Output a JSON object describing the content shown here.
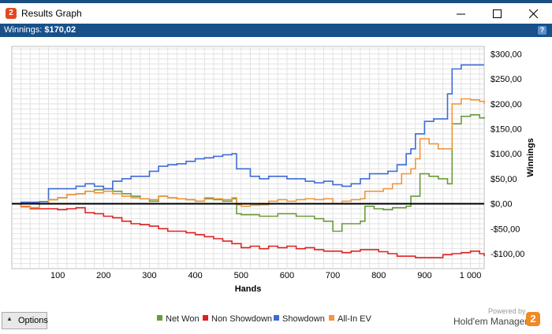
{
  "window": {
    "title": "Results Graph",
    "app_icon_glyph": "2",
    "controls": {
      "minimize": "minimize-icon",
      "maximize": "maximize-icon",
      "close": "close-icon"
    }
  },
  "status": {
    "label": "Winnings:",
    "value": "$170,02",
    "help_glyph": "?"
  },
  "chart_data": {
    "type": "line",
    "xlabel": "Hands",
    "ylabel": "Winnings",
    "xlim": [
      0,
      1030
    ],
    "ylim": [
      -130,
      315
    ],
    "x_ticks": [
      100,
      200,
      300,
      400,
      500,
      600,
      700,
      800,
      900,
      1000
    ],
    "x_tick_labels": [
      "100",
      "200",
      "300",
      "400",
      "500",
      "600",
      "700",
      "800",
      "900",
      "1 000"
    ],
    "y_ticks": [
      -100,
      -50,
      0,
      50,
      100,
      150,
      200,
      250,
      300
    ],
    "y_tick_labels": [
      "-$100,00",
      "-$50,00",
      "$0,00",
      "$50,00",
      "$100,00",
      "$150,00",
      "$200,00",
      "$250,00",
      "$300,00"
    ],
    "zero_line": true,
    "grid": true,
    "legend_position": "bottom",
    "series": [
      {
        "name": "Net Won",
        "color": "#6a9a3a",
        "points": [
          [
            0,
            0
          ],
          [
            20,
            -5
          ],
          [
            40,
            -8
          ],
          [
            60,
            0
          ],
          [
            80,
            8
          ],
          [
            100,
            12
          ],
          [
            120,
            18
          ],
          [
            140,
            20
          ],
          [
            160,
            25
          ],
          [
            180,
            28
          ],
          [
            200,
            30
          ],
          [
            220,
            25
          ],
          [
            240,
            20
          ],
          [
            260,
            15
          ],
          [
            280,
            10
          ],
          [
            300,
            5
          ],
          [
            320,
            15
          ],
          [
            340,
            12
          ],
          [
            360,
            10
          ],
          [
            380,
            8
          ],
          [
            400,
            5
          ],
          [
            420,
            10
          ],
          [
            440,
            8
          ],
          [
            460,
            5
          ],
          [
            480,
            10
          ],
          [
            490,
            -20
          ],
          [
            500,
            -22
          ],
          [
            540,
            -25
          ],
          [
            580,
            -20
          ],
          [
            620,
            -25
          ],
          [
            660,
            -30
          ],
          [
            680,
            -35
          ],
          [
            700,
            -55
          ],
          [
            720,
            -40
          ],
          [
            740,
            -40
          ],
          [
            760,
            -35
          ],
          [
            770,
            -5
          ],
          [
            790,
            -10
          ],
          [
            810,
            -12
          ],
          [
            830,
            -8
          ],
          [
            860,
            -5
          ],
          [
            870,
            15
          ],
          [
            880,
            15
          ],
          [
            890,
            60
          ],
          [
            910,
            55
          ],
          [
            930,
            50
          ],
          [
            950,
            40
          ],
          [
            960,
            160
          ],
          [
            980,
            175
          ],
          [
            1000,
            178
          ],
          [
            1020,
            172
          ],
          [
            1030,
            170
          ]
        ]
      },
      {
        "name": "Non Showdown",
        "color": "#e02020",
        "points": [
          [
            0,
            0
          ],
          [
            20,
            -6
          ],
          [
            40,
            -10
          ],
          [
            60,
            -10
          ],
          [
            80,
            -10
          ],
          [
            100,
            -12
          ],
          [
            120,
            -10
          ],
          [
            140,
            -8
          ],
          [
            160,
            -18
          ],
          [
            180,
            -20
          ],
          [
            200,
            -25
          ],
          [
            220,
            -28
          ],
          [
            240,
            -35
          ],
          [
            260,
            -40
          ],
          [
            280,
            -42
          ],
          [
            300,
            -45
          ],
          [
            320,
            -50
          ],
          [
            340,
            -55
          ],
          [
            360,
            -55
          ],
          [
            380,
            -58
          ],
          [
            400,
            -62
          ],
          [
            420,
            -66
          ],
          [
            440,
            -70
          ],
          [
            460,
            -75
          ],
          [
            480,
            -80
          ],
          [
            500,
            -88
          ],
          [
            520,
            -85
          ],
          [
            540,
            -90
          ],
          [
            560,
            -85
          ],
          [
            580,
            -88
          ],
          [
            600,
            -85
          ],
          [
            620,
            -90
          ],
          [
            640,
            -88
          ],
          [
            660,
            -92
          ],
          [
            680,
            -95
          ],
          [
            700,
            -95
          ],
          [
            720,
            -98
          ],
          [
            740,
            -95
          ],
          [
            760,
            -92
          ],
          [
            780,
            -92
          ],
          [
            800,
            -96
          ],
          [
            820,
            -100
          ],
          [
            840,
            -105
          ],
          [
            860,
            -105
          ],
          [
            880,
            -108
          ],
          [
            900,
            -108
          ],
          [
            920,
            -108
          ],
          [
            940,
            -102
          ],
          [
            960,
            -100
          ],
          [
            980,
            -98
          ],
          [
            1000,
            -95
          ],
          [
            1020,
            -100
          ],
          [
            1030,
            -105
          ]
        ]
      },
      {
        "name": "Showdown",
        "color": "#3d6ad6",
        "points": [
          [
            0,
            0
          ],
          [
            20,
            3
          ],
          [
            40,
            3
          ],
          [
            60,
            4
          ],
          [
            80,
            30
          ],
          [
            100,
            30
          ],
          [
            120,
            30
          ],
          [
            140,
            35
          ],
          [
            160,
            40
          ],
          [
            180,
            35
          ],
          [
            200,
            30
          ],
          [
            220,
            45
          ],
          [
            240,
            50
          ],
          [
            260,
            55
          ],
          [
            280,
            55
          ],
          [
            300,
            65
          ],
          [
            320,
            75
          ],
          [
            340,
            78
          ],
          [
            360,
            80
          ],
          [
            380,
            85
          ],
          [
            400,
            90
          ],
          [
            420,
            92
          ],
          [
            440,
            95
          ],
          [
            460,
            98
          ],
          [
            480,
            100
          ],
          [
            490,
            70
          ],
          [
            500,
            70
          ],
          [
            520,
            55
          ],
          [
            540,
            50
          ],
          [
            560,
            55
          ],
          [
            580,
            55
          ],
          [
            600,
            50
          ],
          [
            620,
            50
          ],
          [
            640,
            45
          ],
          [
            660,
            42
          ],
          [
            680,
            45
          ],
          [
            700,
            38
          ],
          [
            720,
            35
          ],
          [
            740,
            40
          ],
          [
            760,
            50
          ],
          [
            780,
            60
          ],
          [
            800,
            60
          ],
          [
            820,
            65
          ],
          [
            840,
            78
          ],
          [
            860,
            100
          ],
          [
            870,
            110
          ],
          [
            880,
            140
          ],
          [
            900,
            165
          ],
          [
            920,
            170
          ],
          [
            940,
            170
          ],
          [
            950,
            220
          ],
          [
            960,
            270
          ],
          [
            980,
            278
          ],
          [
            1000,
            278
          ],
          [
            1020,
            278
          ],
          [
            1030,
            278
          ]
        ]
      },
      {
        "name": "All-In EV",
        "color": "#f0963c",
        "points": [
          [
            0,
            0
          ],
          [
            20,
            -5
          ],
          [
            40,
            -8
          ],
          [
            60,
            0
          ],
          [
            80,
            8
          ],
          [
            100,
            12
          ],
          [
            120,
            18
          ],
          [
            140,
            20
          ],
          [
            160,
            25
          ],
          [
            180,
            22
          ],
          [
            200,
            25
          ],
          [
            220,
            20
          ],
          [
            240,
            15
          ],
          [
            260,
            12
          ],
          [
            280,
            10
          ],
          [
            300,
            8
          ],
          [
            320,
            15
          ],
          [
            340,
            12
          ],
          [
            360,
            10
          ],
          [
            380,
            8
          ],
          [
            400,
            5
          ],
          [
            420,
            12
          ],
          [
            440,
            10
          ],
          [
            460,
            8
          ],
          [
            480,
            12
          ],
          [
            490,
            -2
          ],
          [
            500,
            -5
          ],
          [
            520,
            -3
          ],
          [
            540,
            -2
          ],
          [
            560,
            5
          ],
          [
            580,
            8
          ],
          [
            600,
            5
          ],
          [
            620,
            8
          ],
          [
            640,
            10
          ],
          [
            660,
            8
          ],
          [
            680,
            10
          ],
          [
            700,
            0
          ],
          [
            720,
            5
          ],
          [
            740,
            8
          ],
          [
            760,
            10
          ],
          [
            770,
            25
          ],
          [
            790,
            25
          ],
          [
            810,
            30
          ],
          [
            830,
            40
          ],
          [
            850,
            60
          ],
          [
            870,
            70
          ],
          [
            880,
            90
          ],
          [
            890,
            130
          ],
          [
            910,
            120
          ],
          [
            930,
            110
          ],
          [
            950,
            110
          ],
          [
            960,
            200
          ],
          [
            980,
            210
          ],
          [
            1000,
            208
          ],
          [
            1020,
            205
          ],
          [
            1030,
            200
          ]
        ]
      }
    ]
  },
  "options_button": {
    "label": "Options",
    "icon": "triangle-up-icon"
  },
  "brand": {
    "powered_by": "Powered by",
    "name": "Hold'em Manager",
    "logo_glyph": "2"
  }
}
